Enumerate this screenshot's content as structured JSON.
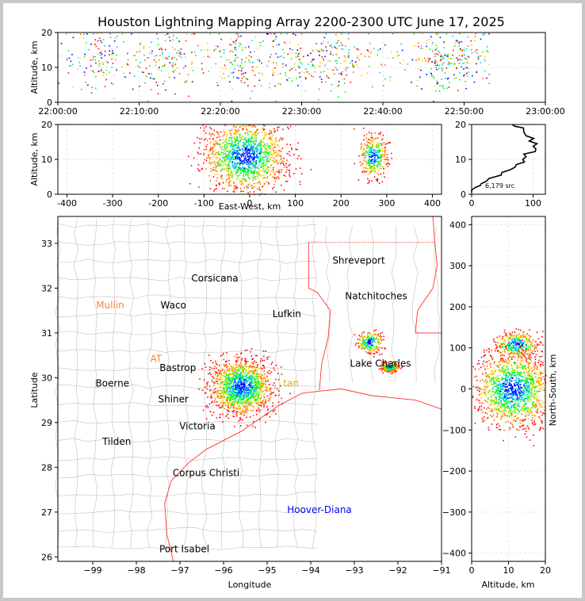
{
  "title": "Houston Lightning Mapping Array 2200-2300 UTC June 17, 2025",
  "colors": {
    "sources": [
      "#0000ff",
      "#00c8ff",
      "#00ff00",
      "#ffcc00",
      "#ff6600",
      "#ff0000"
    ],
    "coast": "#ff0000",
    "county_lines": "#c0c0c0",
    "grid": "#e6e6e6"
  },
  "chart_data": [
    {
      "id": "time_altitude",
      "type": "scatter",
      "xlabel": "",
      "ylabel": "Altitude, km",
      "ylim": [
        0,
        20
      ],
      "xlim": [
        "22:00:00",
        "23:00:00"
      ],
      "xtick_labels": [
        "22:00:00",
        "22:10:00",
        "22:20:00",
        "22:30:00",
        "22:40:00",
        "22:50:00",
        "23:00:00"
      ],
      "ytick_labels": [
        "0",
        "10",
        "20"
      ],
      "source_time_range_min": [
        0,
        53
      ],
      "dense_clusters_min": [
        5,
        13,
        22,
        28,
        34,
        47,
        50
      ]
    },
    {
      "id": "ew_altitude",
      "type": "scatter",
      "xlabel": "East-West, km",
      "ylabel": "Altitude, km",
      "xlim": [
        -420,
        420
      ],
      "ylim": [
        0,
        20
      ],
      "xtick_labels": [
        "-400",
        "-300",
        "-200",
        "-100",
        "0",
        "100",
        "200",
        "300",
        "400"
      ],
      "ytick_labels": [
        "0",
        "10",
        "20"
      ],
      "clusters": [
        {
          "x_center_km": -10,
          "x_spread_km": 45,
          "alt_center_km": 11,
          "alt_spread_km": 5
        },
        {
          "x_center_km": 270,
          "x_spread_km": 15,
          "alt_center_km": 11,
          "alt_spread_km": 3
        }
      ]
    },
    {
      "id": "altitude_histogram",
      "type": "line",
      "xlabel": "",
      "ylabel": "",
      "xlim": [
        0,
        120
      ],
      "ylim": [
        0,
        20
      ],
      "xtick_labels": [
        "0",
        "100"
      ],
      "ytick_labels": [
        "0",
        "10",
        "20"
      ],
      "annotation": "6,179 src",
      "profile": [
        [
          0,
          0.5
        ],
        [
          10,
          2
        ],
        [
          18,
          3
        ],
        [
          30,
          4.5
        ],
        [
          45,
          5.5
        ],
        [
          60,
          7
        ],
        [
          75,
          8.5
        ],
        [
          85,
          10
        ],
        [
          92,
          11.5
        ],
        [
          100,
          13
        ],
        [
          105,
          14.5
        ],
        [
          95,
          16
        ],
        [
          88,
          17.5
        ],
        [
          80,
          19
        ],
        [
          70,
          20
        ]
      ]
    },
    {
      "id": "plan_view",
      "type": "scatter",
      "xlabel": "Longitude",
      "ylabel": "Latitude",
      "xlim": [
        -99.8,
        -91
      ],
      "ylim": [
        25.9,
        33.6
      ],
      "xtick_labels": [
        "−99",
        "−98",
        "−97",
        "−96",
        "−95",
        "−94",
        "−93",
        "−92",
        "−91"
      ],
      "ytick_labels": [
        "26",
        "27",
        "28",
        "29",
        "30",
        "31",
        "32",
        "33"
      ],
      "clusters": [
        {
          "lon": -95.6,
          "lat": 29.8,
          "spread_lon": 0.35,
          "spread_lat": 0.3
        },
        {
          "lon": -92.65,
          "lat": 30.8,
          "spread_lon": 0.15,
          "spread_lat": 0.12
        },
        {
          "lon": -92.2,
          "lat": 30.25,
          "spread_lon": 0.1,
          "spread_lat": 0.05
        }
      ],
      "places": [
        {
          "name": "Shreveport",
          "lon": -92.9,
          "lat": 32.55,
          "color": "#000000"
        },
        {
          "name": "Corsicana",
          "lon": -96.2,
          "lat": 32.15,
          "color": "#000000"
        },
        {
          "name": "Natchitoches",
          "lon": -92.5,
          "lat": 31.75,
          "color": "#000000"
        },
        {
          "name": "Mullin",
          "lon": -98.6,
          "lat": 31.55,
          "color": "#ff8040"
        },
        {
          "name": "Waco",
          "lon": -97.15,
          "lat": 31.55,
          "color": "#000000"
        },
        {
          "name": "Lufkin",
          "lon": -94.55,
          "lat": 31.35,
          "color": "#000000"
        },
        {
          "name": "AT",
          "lon": -97.55,
          "lat": 30.35,
          "color": "#ff8040"
        },
        {
          "name": "Bastrop",
          "lon": -97.05,
          "lat": 30.15,
          "color": "#000000"
        },
        {
          "name": "Lake Charles",
          "lon": -92.4,
          "lat": 30.25,
          "color": "#000000"
        },
        {
          "name": "Boerne",
          "lon": -98.55,
          "lat": 29.8,
          "color": "#000000"
        },
        {
          "name": "tan",
          "lon": -94.45,
          "lat": 29.8,
          "color": "#e8b000"
        },
        {
          "name": "Shiner",
          "lon": -97.15,
          "lat": 29.45,
          "color": "#000000"
        },
        {
          "name": "Victoria",
          "lon": -96.6,
          "lat": 28.85,
          "color": "#000000"
        },
        {
          "name": "Tilden",
          "lon": -98.45,
          "lat": 28.5,
          "color": "#000000"
        },
        {
          "name": "Corpus Christi",
          "lon": -96.4,
          "lat": 27.8,
          "color": "#000000"
        },
        {
          "name": "Hoover-Diana",
          "lon": -93.8,
          "lat": 26.98,
          "color": "#0000ff"
        },
        {
          "name": "Port Isabel",
          "lon": -96.9,
          "lat": 26.1,
          "color": "#000000"
        }
      ]
    },
    {
      "id": "ns_altitude",
      "type": "scatter",
      "xlabel": "Altitude, km",
      "ylabel": "North-South, km",
      "xlim": [
        0,
        20
      ],
      "ylim": [
        -420,
        420
      ],
      "xtick_labels": [
        "0",
        "10",
        "20"
      ],
      "ytick_labels": [
        "400",
        "300",
        "200",
        "100",
        "0",
        "−100",
        "−200",
        "−300",
        "−400"
      ],
      "clusters": [
        {
          "ns_center_km": 110,
          "ns_spread_km": 15,
          "alt_center_km": 12,
          "alt_spread_km": 3
        },
        {
          "ns_center_km": 0,
          "ns_spread_km": 45,
          "alt_center_km": 11,
          "alt_spread_km": 5
        }
      ]
    }
  ]
}
